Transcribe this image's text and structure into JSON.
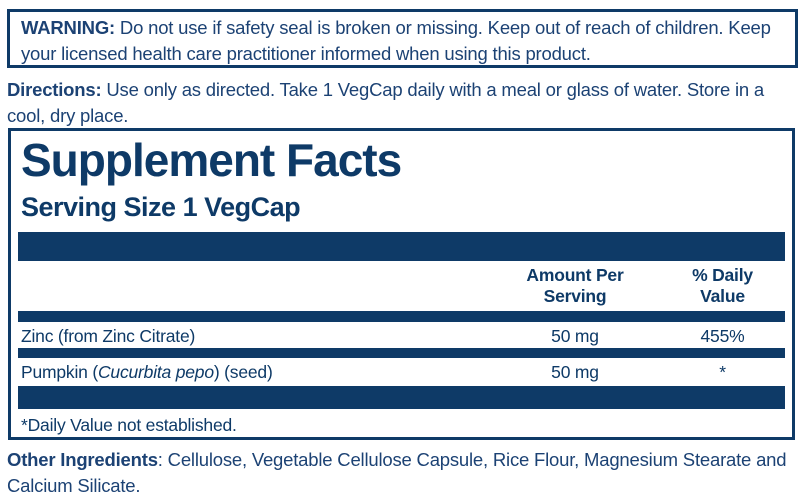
{
  "colors": {
    "navy": "#0e3a67",
    "text": "#1c4274"
  },
  "warning": {
    "label": "WARNING:",
    "text": " Do not use if safety seal is broken or missing. Keep out of reach of children. Keep your licensed health care practitioner informed when using this product."
  },
  "directions": {
    "label": "Directions:",
    "text": " Use only as directed. Take 1 VegCap daily with a meal or glass of water. Store in a cool, dry place."
  },
  "supplement_facts": {
    "title": "Supplement Facts",
    "serving_size": "Serving Size 1 VegCap",
    "columns": {
      "amount": "Amount Per\nServing",
      "daily_value": "% Daily\nValue"
    },
    "rows": [
      {
        "name_prefix": "Zinc (from Zinc Citrate)",
        "name_italic": "",
        "name_suffix": "",
        "amount": "50 mg",
        "daily_value": "455%"
      },
      {
        "name_prefix": "Pumpkin (",
        "name_italic": "Cucurbita pepo",
        "name_suffix": ") (seed)",
        "amount": "50 mg",
        "daily_value": "*"
      }
    ],
    "footnote": "*Daily Value not established."
  },
  "other_ingredients": {
    "label": "Other Ingredients",
    "text": ": Cellulose, Vegetable Cellulose Capsule, Rice Flour, Magnesium Stearate and Calcium Silicate."
  }
}
